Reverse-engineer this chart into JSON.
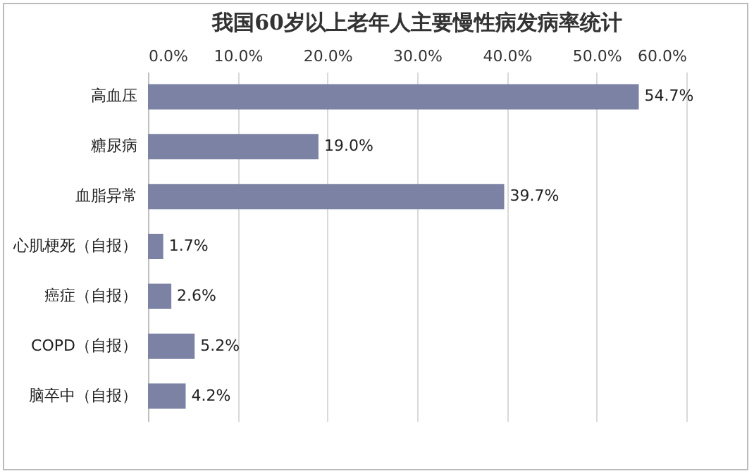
{
  "chart_data": {
    "type": "bar",
    "orientation": "horizontal",
    "title": "我国60岁以上老年人主要慢性病发病率统计",
    "categories": [
      "高血压",
      "糖尿病",
      "血脂异常",
      "心肌梗死（自报）",
      "癌症（自报）",
      "COPD（自报）",
      "脑卒中（自报）"
    ],
    "values": [
      54.7,
      19.0,
      39.7,
      1.7,
      2.6,
      5.2,
      4.2
    ],
    "value_labels": [
      "54.7%",
      "19.0%",
      "39.7%",
      "1.7%",
      "2.6%",
      "5.2%",
      "4.2%"
    ],
    "color": "#7b82a3",
    "xlim": [
      0,
      60
    ],
    "xticks": [
      {
        "value": 0,
        "label": "0.0%"
      },
      {
        "value": 10,
        "label": "10.0%"
      },
      {
        "value": 20,
        "label": "20.0%"
      },
      {
        "value": 30,
        "label": "30.0%"
      },
      {
        "value": 40,
        "label": "40.0%"
      },
      {
        "value": 50,
        "label": "50.0%"
      },
      {
        "value": 60,
        "label": "60.0%"
      }
    ],
    "grid": "x"
  }
}
